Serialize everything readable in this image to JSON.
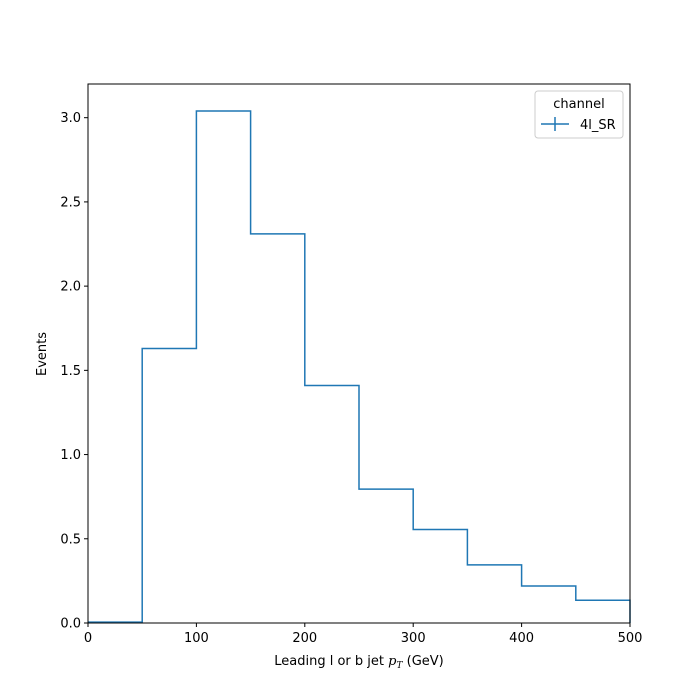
{
  "chart_data": {
    "type": "histogram-step",
    "xlabel_text": "Leading l or b jet ",
    "xlabel_var": "p",
    "xlabel_sub": "T",
    "xlabel_unit": " (GeV)",
    "ylabel": "Events",
    "xlim": [
      0,
      500
    ],
    "ylim": [
      0,
      3.2
    ],
    "x_ticks": [
      0,
      100,
      200,
      300,
      400,
      500
    ],
    "x_tick_labels": [
      "0",
      "100",
      "200",
      "300",
      "400",
      "500"
    ],
    "y_ticks": [
      0,
      0.5,
      1.0,
      1.5,
      2.0,
      2.5,
      3.0
    ],
    "y_tick_labels": [
      "0.0",
      "0.5",
      "1.0",
      "1.5",
      "2.0",
      "2.5",
      "3.0"
    ],
    "bin_edges": [
      0,
      50,
      100,
      150,
      200,
      250,
      300,
      350,
      400,
      450,
      500
    ],
    "series": [
      {
        "name": "4l_SR",
        "color": "#1f77b4",
        "values": [
          0.005,
          1.63,
          3.04,
          2.31,
          1.41,
          0.795,
          0.555,
          0.345,
          0.22,
          0.135
        ]
      }
    ],
    "legend": {
      "title": "channel",
      "placement": "top-right"
    },
    "grid": false
  }
}
